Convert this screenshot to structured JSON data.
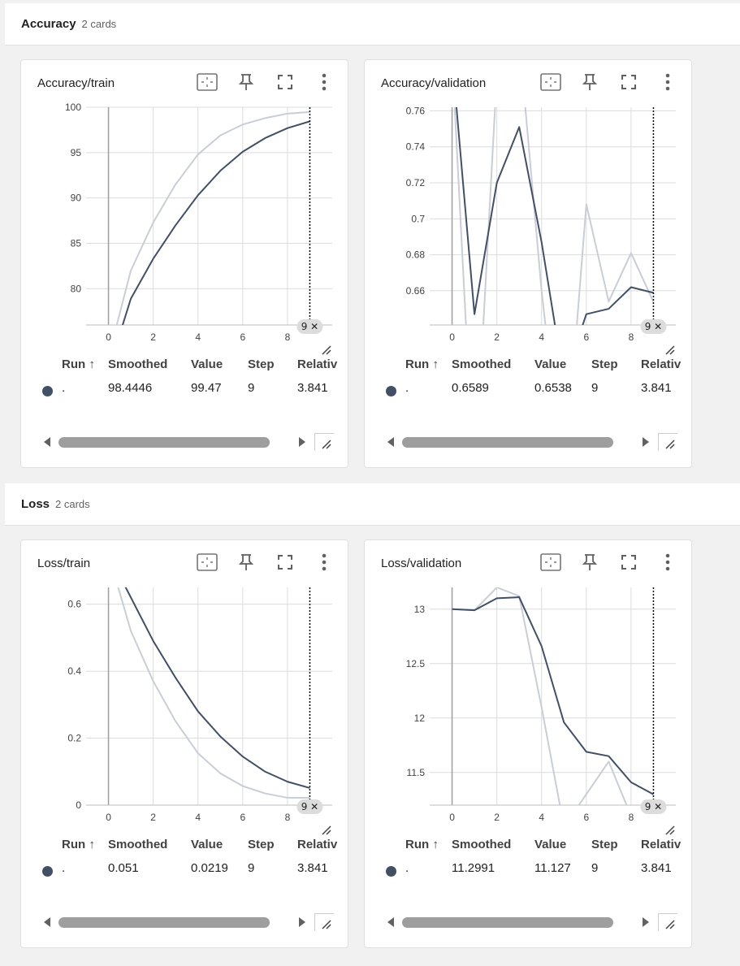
{
  "colors": {
    "smoothed": "#425066",
    "raw": "#c9ced6",
    "grid": "#dcdcdc",
    "axis": "#9e9e9e"
  },
  "groups": [
    {
      "title": "Accuracy",
      "count": "2 cards"
    },
    {
      "title": "Loss",
      "count": "2 cards"
    }
  ],
  "table_headers": {
    "run": "Run ↑",
    "smoothed": "Smoothed",
    "value": "Value",
    "step": "Step",
    "relative": "Relativ"
  },
  "step_marker_label": "9 ✕",
  "icons": [
    "fit-domain-icon",
    "pin-icon",
    "fullscreen-icon",
    "more-vert-icon",
    "resize-icon"
  ],
  "cards": [
    {
      "title": "Accuracy/train",
      "row": {
        "run": ".",
        "smoothed": "98.4446",
        "value": "99.47",
        "step": "9",
        "relative": "3.841"
      },
      "chart_data": {
        "type": "line",
        "x": [
          0,
          1,
          2,
          3,
          4,
          5,
          6,
          7,
          8,
          9
        ],
        "series": [
          {
            "values": [
              72.5,
              82.0,
              87.3,
              91.5,
              94.8,
              96.9,
              98.1,
              98.8,
              99.3,
              99.47
            ]
          },
          {
            "values": [
              71.0,
              78.9,
              83.3,
              87.0,
              90.3,
              93.0,
              95.1,
              96.6,
              97.7,
              98.4446
            ]
          }
        ],
        "xlim": [
          -1,
          10
        ],
        "ylim": [
          76,
          100
        ],
        "xticks": [
          "0",
          "2",
          "4",
          "6",
          "8",
          "1"
        ],
        "yticks": [
          "80",
          "85",
          "90",
          "95",
          "100"
        ]
      }
    },
    {
      "title": "Accuracy/validation",
      "row": {
        "run": ".",
        "smoothed": "0.6589",
        "value": "0.6538",
        "step": "9",
        "relative": "3.841"
      },
      "chart_data": {
        "type": "line",
        "x": [
          0,
          1,
          2,
          3,
          4,
          5,
          6,
          7,
          8,
          9
        ],
        "series": [
          {
            "values": [
              0.79,
              0.55,
              0.78,
              0.8,
              0.66,
              0.55,
              0.708,
              0.654,
              0.681,
              0.6538
            ]
          },
          {
            "values": [
              0.79,
              0.647,
              0.72,
              0.751,
              0.687,
              0.61,
              0.647,
              0.65,
              0.662,
              0.6589
            ]
          }
        ],
        "xlim": [
          -1,
          10
        ],
        "ylim": [
          0.641,
          0.762
        ],
        "xticks": [
          "0",
          "2",
          "4",
          "6",
          "8",
          "1"
        ],
        "yticks": [
          "0.66",
          "0.68",
          "0.7",
          "0.72",
          "0.74",
          "0.76"
        ]
      }
    },
    {
      "title": "Loss/train",
      "row": {
        "run": ".",
        "smoothed": "0.051",
        "value": "0.0219",
        "step": "9",
        "relative": "3.841"
      },
      "chart_data": {
        "type": "line",
        "x": [
          0,
          1,
          2,
          3,
          4,
          5,
          6,
          7,
          8,
          9
        ],
        "series": [
          {
            "values": [
              0.75,
              0.52,
              0.37,
              0.25,
              0.155,
              0.095,
              0.057,
              0.035,
              0.022,
              0.0219
            ]
          },
          {
            "values": [
              0.75,
              0.62,
              0.49,
              0.38,
              0.28,
              0.205,
              0.145,
              0.1,
              0.07,
              0.051
            ]
          }
        ],
        "xlim": [
          -1,
          10
        ],
        "ylim": [
          0,
          0.65
        ],
        "xticks": [
          "0",
          "2",
          "4",
          "6",
          "8",
          "1"
        ],
        "yticks": [
          "0",
          "0.2",
          "0.4",
          "0.6"
        ]
      }
    },
    {
      "title": "Loss/validation",
      "row": {
        "run": ".",
        "smoothed": "11.2991",
        "value": "11.127",
        "step": "9",
        "relative": "3.841"
      },
      "chart_data": {
        "type": "line",
        "x": [
          0,
          1,
          2,
          3,
          4,
          5,
          6,
          7,
          8,
          9
        ],
        "series": [
          {
            "values": [
              13.0,
              12.99,
              13.2,
              13.12,
              12.1,
              11.0,
              11.3,
              11.6,
              11.1,
              11.127
            ]
          },
          {
            "values": [
              13.0,
              12.99,
              13.1,
              13.11,
              12.66,
              11.96,
              11.69,
              11.65,
              11.41,
              11.2991
            ]
          }
        ],
        "xlim": [
          -1,
          10
        ],
        "ylim": [
          11.2,
          13.2
        ],
        "xticks": [
          "0",
          "2",
          "4",
          "6",
          "8",
          "1"
        ],
        "yticks": [
          "11.5",
          "12",
          "12.5",
          "13"
        ]
      }
    }
  ]
}
